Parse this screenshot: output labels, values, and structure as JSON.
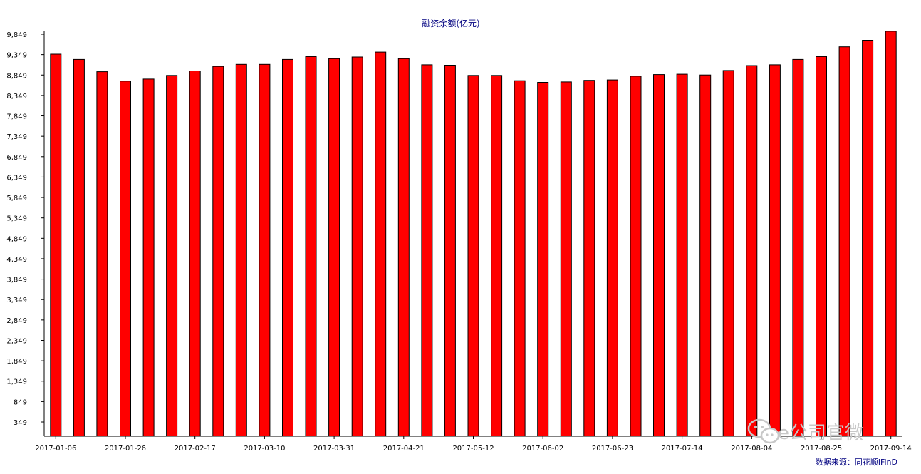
{
  "chart_data": {
    "type": "bar",
    "title": "融资余额(亿元)",
    "xlabel": "",
    "ylabel": "",
    "ylim": [
      0,
      9849
    ],
    "yticks": [
      349,
      849,
      1349,
      1849,
      2349,
      2849,
      3349,
      3849,
      4349,
      4849,
      5349,
      5849,
      6349,
      6849,
      7349,
      7849,
      8349,
      8849,
      9349,
      9849
    ],
    "ytick_labels": [
      "349",
      "849",
      "1,349",
      "1,849",
      "2,349",
      "2,849",
      "3,349",
      "3,849",
      "4,349",
      "4,849",
      "5,349",
      "5,849",
      "6,349",
      "6,849",
      "7,349",
      "7,849",
      "8,349",
      "8,849",
      "9,349",
      "9,849"
    ],
    "x_tick_labels": [
      "2017-01-06",
      "2017-01-26",
      "2017-02-17",
      "2017-03-10",
      "2017-03-31",
      "2017-04-21",
      "2017-05-12",
      "2017-06-02",
      "2017-06-23",
      "2017-07-14",
      "2017-08-04",
      "2017-08-25",
      "2017-09-14"
    ],
    "x_tick_every": 3,
    "grid": false,
    "bar_color": "#ff0000",
    "values": [
      9360,
      9230,
      8930,
      8700,
      8750,
      8840,
      8950,
      9060,
      9110,
      9110,
      9230,
      9300,
      9250,
      9290,
      9410,
      9250,
      9100,
      9090,
      8840,
      8840,
      8710,
      8670,
      8680,
      8720,
      8730,
      8820,
      8860,
      8870,
      8850,
      8960,
      9080,
      9100,
      9230,
      9300,
      9540,
      9700,
      9920
    ]
  },
  "source": "数据来源：同花顺iFinD",
  "watermark": {
    "icon": "wechat-icon",
    "text": "e公司官微"
  }
}
